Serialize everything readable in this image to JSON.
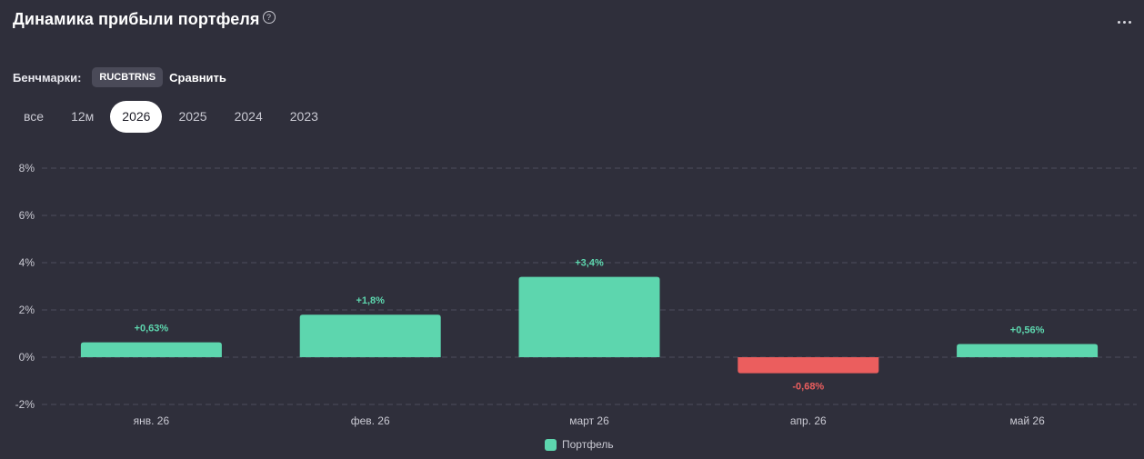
{
  "header": {
    "title": "Динамика прибыли портфеля",
    "help_icon": "question-circle-icon",
    "more_icon": "ellipsis-icon"
  },
  "benchmarks": {
    "label": "Бенчмарки:",
    "chip": "RUCBTRNS",
    "compare_label": "Сравнить"
  },
  "periods": [
    {
      "label": "все",
      "active": false
    },
    {
      "label": "12м",
      "active": false
    },
    {
      "label": "2026",
      "active": true
    },
    {
      "label": "2025",
      "active": false
    },
    {
      "label": "2024",
      "active": false
    },
    {
      "label": "2023",
      "active": false
    }
  ],
  "colors": {
    "positive": "#5dd6ae",
    "negative": "#eb5e5e",
    "grid": "#4e4e5c",
    "tick_text": "#c9c9d2"
  },
  "chart_data": {
    "type": "bar",
    "categories": [
      "янв. 26",
      "фев. 26",
      "март 26",
      "апр. 26",
      "май 26"
    ],
    "values": [
      0.63,
      1.8,
      3.4,
      -0.68,
      0.56
    ],
    "labels": [
      "+0,63%",
      "+1,8%",
      "+3,4%",
      "-0,68%",
      "+0,56%"
    ],
    "ylim": [
      -2,
      8
    ],
    "yticks": [
      8,
      6,
      4,
      2,
      0,
      -2
    ],
    "ytick_labels": [
      "8%",
      "6%",
      "4%",
      "2%",
      "0%",
      "-2%"
    ],
    "grid": true,
    "legend_position": "bottom",
    "series": [
      {
        "name": "Портфель",
        "values": [
          0.63,
          1.8,
          3.4,
          -0.68,
          0.56
        ]
      }
    ]
  }
}
